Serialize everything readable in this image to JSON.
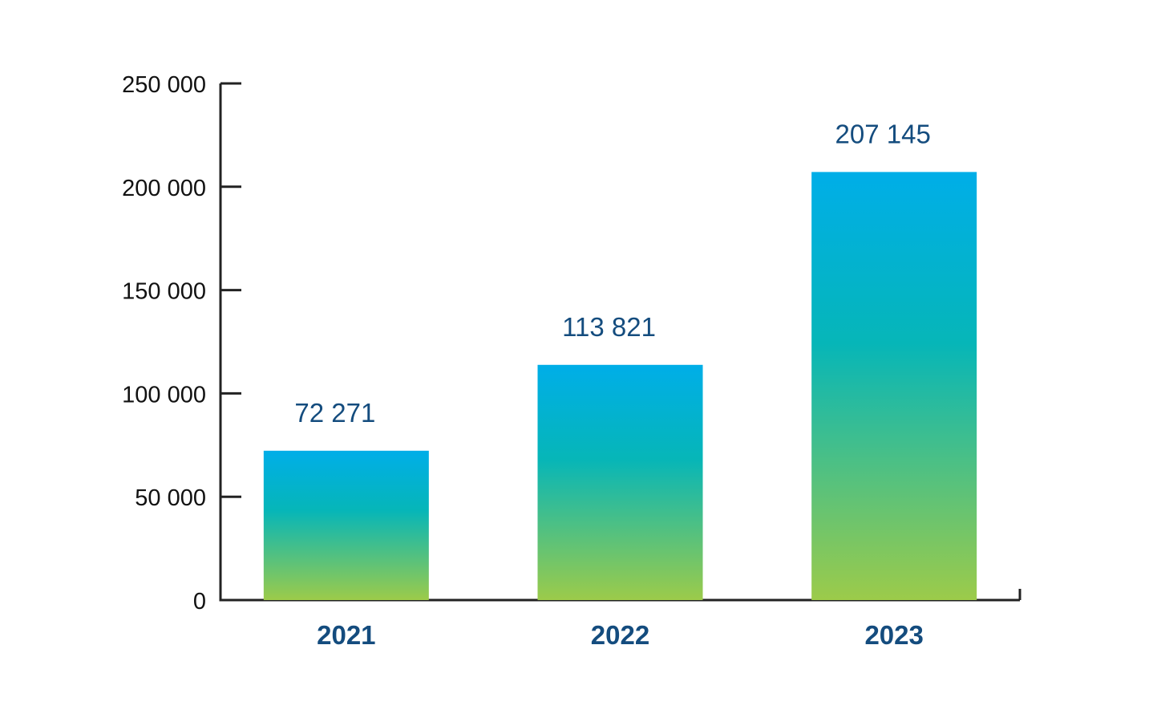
{
  "chart_data": {
    "type": "bar",
    "categories": [
      "2021",
      "2022",
      "2023"
    ],
    "values": [
      72271,
      113821,
      207145
    ],
    "data_labels": [
      "72 271",
      "113 821",
      "207 145"
    ],
    "yticks": [
      {
        "value": 0,
        "label": "0"
      },
      {
        "value": 50000,
        "label": "50 000"
      },
      {
        "value": 100000,
        "label": "100 000"
      },
      {
        "value": 150000,
        "label": "150 000"
      },
      {
        "value": 200000,
        "label": "200 000"
      },
      {
        "value": 250000,
        "label": "250 000"
      }
    ],
    "ylim": [
      0,
      250000
    ],
    "title": "",
    "xlabel": "",
    "ylabel": "",
    "grid": false,
    "colors": {
      "bar_top": "#00aee8",
      "bar_mid": "#06b6b8",
      "bar_bottom": "#9ccb4a",
      "label_text": "#144c7e",
      "axis": "#222222"
    }
  }
}
